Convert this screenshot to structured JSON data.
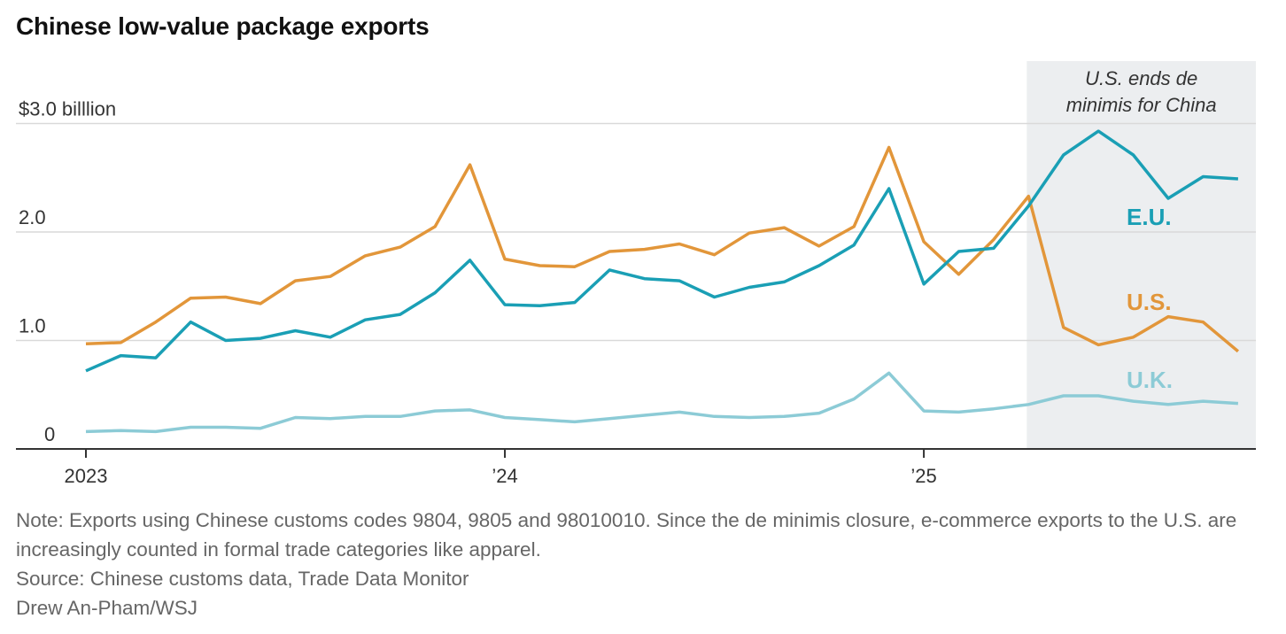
{
  "title": "Chinese low-value package exports",
  "notes": {
    "note": "Note: Exports using Chinese customs codes 9804, 9805 and 98010010. Since the de minimis closure, e-commerce exports to the U.S. are increasingly counted in formal trade categories like apparel.",
    "source": "Source: Chinese customs data, Trade Data Monitor",
    "credit": "Drew An-Pham/WSJ"
  },
  "chart_data": {
    "type": "line",
    "ylim": [
      0,
      3.0
    ],
    "yticks": [
      {
        "value": 0,
        "label": "0"
      },
      {
        "value": 1.0,
        "label": "1.0"
      },
      {
        "value": 2.0,
        "label": "2.0"
      },
      {
        "value": 3.0,
        "label": "$3.0 billlion"
      }
    ],
    "xticks": [
      {
        "index": 0,
        "label": "2023"
      },
      {
        "index": 12,
        "label": "’24"
      },
      {
        "index": 24,
        "label": "’25"
      }
    ],
    "grid": true,
    "shade": {
      "from_index": 27,
      "to_index": 33,
      "label_line1": "U.S. ends de",
      "label_line2": "minimis for China"
    },
    "series": [
      {
        "name": "E.U.",
        "color": "#1a9fb5",
        "values": [
          0.72,
          0.86,
          0.84,
          1.17,
          1.0,
          1.02,
          1.09,
          1.03,
          1.19,
          1.24,
          1.44,
          1.74,
          1.33,
          1.32,
          1.35,
          1.65,
          1.57,
          1.55,
          1.4,
          1.49,
          1.54,
          1.69,
          1.88,
          2.4,
          1.52,
          1.82,
          1.85,
          2.24,
          2.71,
          2.93,
          2.71,
          2.31,
          2.51,
          2.49
        ]
      },
      {
        "name": "U.S.",
        "color": "#e2963a",
        "values": [
          0.97,
          0.98,
          1.17,
          1.39,
          1.4,
          1.34,
          1.55,
          1.59,
          1.78,
          1.86,
          2.05,
          2.62,
          1.75,
          1.69,
          1.68,
          1.82,
          1.84,
          1.89,
          1.79,
          1.99,
          2.04,
          1.87,
          2.05,
          2.78,
          1.91,
          1.61,
          1.93,
          2.33,
          1.12,
          0.96,
          1.03,
          1.22,
          1.17,
          0.9
        ]
      },
      {
        "name": "U.K.",
        "color": "#8ccbd6",
        "values": [
          0.16,
          0.17,
          0.16,
          0.2,
          0.2,
          0.19,
          0.29,
          0.28,
          0.3,
          0.3,
          0.35,
          0.36,
          0.29,
          0.27,
          0.25,
          0.28,
          0.31,
          0.34,
          0.3,
          0.29,
          0.3,
          0.33,
          0.46,
          0.7,
          0.35,
          0.34,
          0.37,
          0.41,
          0.49,
          0.49,
          0.44,
          0.41,
          0.44,
          0.42
        ]
      }
    ]
  }
}
